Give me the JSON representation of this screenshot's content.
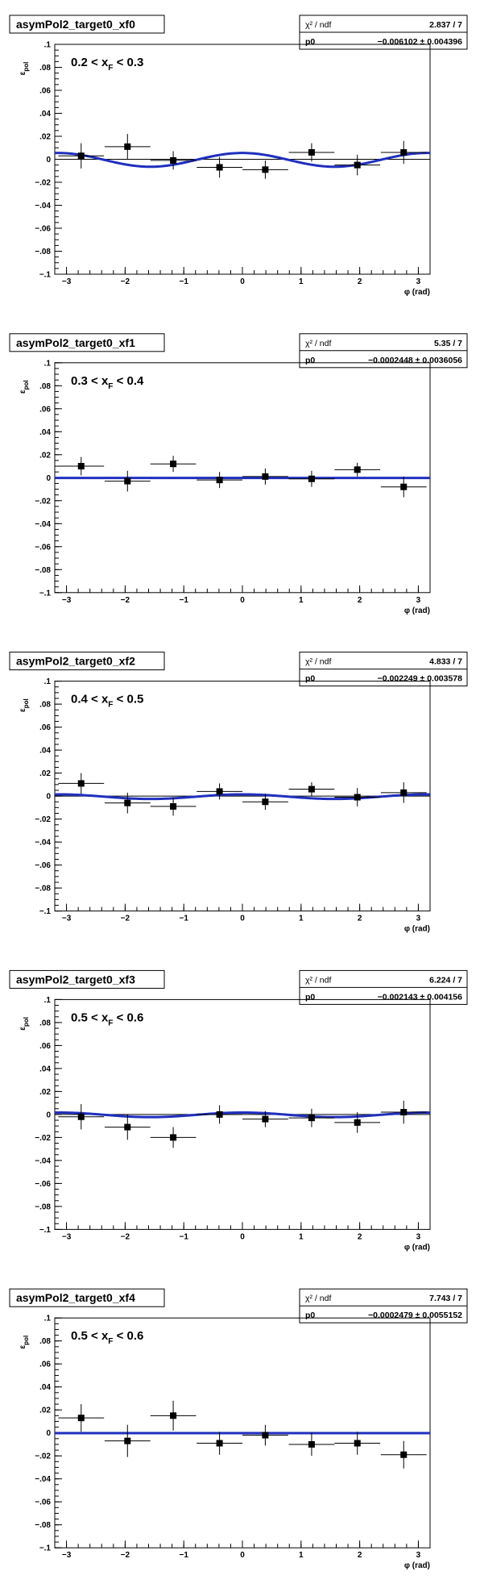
{
  "chart_data": [
    {
      "type": "scatter",
      "title": "asymPol2_target0_xf0",
      "xlabel": "φ (rad)",
      "ylabel": "ε_pol",
      "xlim": [
        -3.2,
        3.2
      ],
      "ylim": [
        -0.1,
        0.1
      ],
      "annotation": "0.2 < x_F < 0.3",
      "stats": {
        "chi2_label": "χ² / ndf",
        "chi2_value": "2.837 / 7",
        "p0_label": "p0",
        "p0_value": "−0.006102 ± 0.004396"
      },
      "points": [
        {
          "x": -2.75,
          "y": 0.003,
          "xerr": 0.39,
          "yerr": 0.011
        },
        {
          "x": -1.96,
          "y": 0.011,
          "xerr": 0.39,
          "yerr": 0.011
        },
        {
          "x": -1.18,
          "y": -0.001,
          "xerr": 0.39,
          "yerr": 0.008
        },
        {
          "x": -0.39,
          "y": -0.007,
          "xerr": 0.39,
          "yerr": 0.009
        },
        {
          "x": 0.39,
          "y": -0.009,
          "xerr": 0.39,
          "yerr": 0.008
        },
        {
          "x": 1.18,
          "y": 0.006,
          "xerr": 0.39,
          "yerr": 0.008
        },
        {
          "x": 1.96,
          "y": -0.005,
          "xerr": 0.39,
          "yerr": 0.009
        },
        {
          "x": 2.75,
          "y": 0.006,
          "xerr": 0.39,
          "yerr": 0.01
        }
      ],
      "fit": {
        "offset": -0.0005,
        "amp": 0.006
      }
    },
    {
      "type": "scatter",
      "title": "asymPol2_target0_xf1",
      "xlabel": "φ (rad)",
      "ylabel": "ε_pol",
      "xlim": [
        -3.2,
        3.2
      ],
      "ylim": [
        -0.1,
        0.1
      ],
      "annotation": "0.3 < x_F < 0.4",
      "stats": {
        "chi2_label": "χ² / ndf",
        "chi2_value": "5.35 / 7",
        "p0_label": "p0",
        "p0_value": "−0.0002448 ± 0.0036056"
      },
      "points": [
        {
          "x": -2.75,
          "y": 0.01,
          "xerr": 0.39,
          "yerr": 0.008
        },
        {
          "x": -1.96,
          "y": -0.003,
          "xerr": 0.39,
          "yerr": 0.009
        },
        {
          "x": -1.18,
          "y": 0.012,
          "xerr": 0.39,
          "yerr": 0.007
        },
        {
          "x": -0.39,
          "y": -0.002,
          "xerr": 0.39,
          "yerr": 0.007
        },
        {
          "x": 0.39,
          "y": 0.001,
          "xerr": 0.39,
          "yerr": 0.007
        },
        {
          "x": 1.18,
          "y": -0.001,
          "xerr": 0.39,
          "yerr": 0.007
        },
        {
          "x": 1.96,
          "y": 0.007,
          "xerr": 0.39,
          "yerr": 0.006
        },
        {
          "x": 2.75,
          "y": -0.008,
          "xerr": 0.39,
          "yerr": 0.009
        }
      ],
      "fit": {
        "offset": -0.0002,
        "amp": 0.0
      }
    },
    {
      "type": "scatter",
      "title": "asymPol2_target0_xf2",
      "xlabel": "φ (rad)",
      "ylabel": "ε_pol",
      "xlim": [
        -3.2,
        3.2
      ],
      "ylim": [
        -0.1,
        0.1
      ],
      "annotation": "0.4 < x_F < 0.5",
      "stats": {
        "chi2_label": "χ² / ndf",
        "chi2_value": "4.833 / 7",
        "p0_label": "p0",
        "p0_value": "−0.002249 ± 0.003578"
      },
      "points": [
        {
          "x": -2.75,
          "y": 0.011,
          "xerr": 0.39,
          "yerr": 0.009
        },
        {
          "x": -1.96,
          "y": -0.006,
          "xerr": 0.39,
          "yerr": 0.009
        },
        {
          "x": -1.18,
          "y": -0.009,
          "xerr": 0.39,
          "yerr": 0.008
        },
        {
          "x": -0.39,
          "y": 0.004,
          "xerr": 0.39,
          "yerr": 0.007
        },
        {
          "x": 0.39,
          "y": -0.005,
          "xerr": 0.39,
          "yerr": 0.007
        },
        {
          "x": 1.18,
          "y": 0.006,
          "xerr": 0.39,
          "yerr": 0.006
        },
        {
          "x": 1.96,
          "y": -0.001,
          "xerr": 0.39,
          "yerr": 0.008
        },
        {
          "x": 2.75,
          "y": 0.003,
          "xerr": 0.39,
          "yerr": 0.009
        }
      ],
      "fit": {
        "offset": -0.0005,
        "amp": 0.002
      }
    },
    {
      "type": "scatter",
      "title": "asymPol2_target0_xf3",
      "xlabel": "φ (rad)",
      "ylabel": "ε_pol",
      "xlim": [
        -3.2,
        3.2
      ],
      "ylim": [
        -0.1,
        0.1
      ],
      "annotation": "0.5 < x_F < 0.6",
      "stats": {
        "chi2_label": "χ² / ndf",
        "chi2_value": "6.224 / 7",
        "p0_label": "p0",
        "p0_value": "−0.002143 ± 0.004156"
      },
      "points": [
        {
          "x": -2.75,
          "y": -0.002,
          "xerr": 0.39,
          "yerr": 0.011
        },
        {
          "x": -1.96,
          "y": -0.011,
          "xerr": 0.39,
          "yerr": 0.011
        },
        {
          "x": -1.18,
          "y": -0.02,
          "xerr": 0.39,
          "yerr": 0.009
        },
        {
          "x": -0.39,
          "y": 0.0,
          "xerr": 0.39,
          "yerr": 0.008
        },
        {
          "x": 0.39,
          "y": -0.004,
          "xerr": 0.39,
          "yerr": 0.007
        },
        {
          "x": 1.18,
          "y": -0.003,
          "xerr": 0.39,
          "yerr": 0.008
        },
        {
          "x": 1.96,
          "y": -0.007,
          "xerr": 0.39,
          "yerr": 0.009
        },
        {
          "x": 2.75,
          "y": 0.002,
          "xerr": 0.39,
          "yerr": 0.01
        }
      ],
      "fit": {
        "offset": -0.0003,
        "amp": 0.002
      }
    },
    {
      "type": "scatter",
      "title": "asymPol2_target0_xf4",
      "xlabel": "φ (rad)",
      "ylabel": "ε_pol",
      "xlim": [
        -3.2,
        3.2
      ],
      "ylim": [
        -0.1,
        0.1
      ],
      "annotation": "0.5 < x_F < 0.6",
      "stats": {
        "chi2_label": "χ² / ndf",
        "chi2_value": "7.743 / 7",
        "p0_label": "p0",
        "p0_value": "−0.0002479 ± 0.0055152"
      },
      "points": [
        {
          "x": -2.75,
          "y": 0.013,
          "xerr": 0.39,
          "yerr": 0.012
        },
        {
          "x": -1.96,
          "y": -0.007,
          "xerr": 0.39,
          "yerr": 0.014
        },
        {
          "x": -1.18,
          "y": 0.015,
          "xerr": 0.39,
          "yerr": 0.013
        },
        {
          "x": -0.39,
          "y": -0.009,
          "xerr": 0.39,
          "yerr": 0.01
        },
        {
          "x": 0.39,
          "y": -0.002,
          "xerr": 0.39,
          "yerr": 0.009
        },
        {
          "x": 1.18,
          "y": -0.01,
          "xerr": 0.39,
          "yerr": 0.01
        },
        {
          "x": 1.96,
          "y": -0.009,
          "xerr": 0.39,
          "yerr": 0.01
        },
        {
          "x": 2.75,
          "y": -0.019,
          "xerr": 0.39,
          "yerr": 0.012
        }
      ],
      "fit": {
        "offset": -0.0002,
        "amp": 0.0
      }
    }
  ],
  "ui": {
    "y_ticks": [
      0.1,
      0.08,
      0.06,
      0.04,
      0.02,
      0,
      -0.02,
      -0.04,
      -0.06,
      -0.08,
      -0.1
    ],
    "x_ticks": [
      -3,
      -2,
      -1,
      0,
      1,
      2,
      3
    ],
    "colors": {
      "fit": "#1f2fbf",
      "marker": "#000000",
      "background": "#ffffff"
    }
  }
}
